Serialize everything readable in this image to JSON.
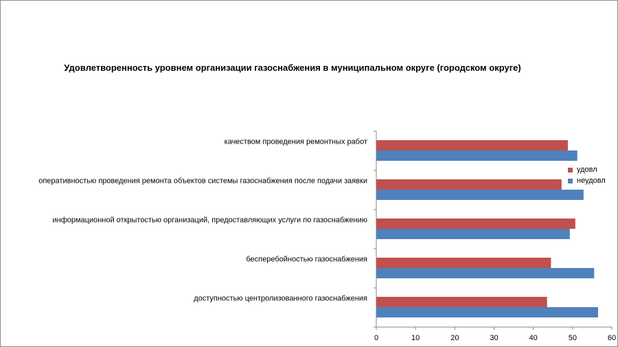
{
  "chart_data": {
    "type": "bar",
    "orientation": "horizontal",
    "title": "Удовлетворенность уровнем организации газоснабжения в муниципальном округе (городском округе)",
    "categories": [
      "доступностью центролизованного газоснабжения",
      "бесперебойностью газоснабжения",
      "информационной открытостью организаций, предоставляющих услуги по газоснабжению",
      "оперативностью проведения ремонта объектов системы газоснабжения после подачи заявки",
      "качеством проведения ремонтных работ"
    ],
    "series": [
      {
        "name": "удовл",
        "color": "#c0504d",
        "values": [
          43.5,
          44.5,
          50.7,
          47.2,
          48.8
        ]
      },
      {
        "name": "неудовл",
        "color": "#4f81bd",
        "values": [
          56.5,
          55.5,
          49.3,
          52.8,
          51.2
        ]
      }
    ],
    "xlim": [
      0,
      60
    ],
    "xticks": [
      0,
      10,
      20,
      30,
      40,
      50,
      60
    ],
    "grid": false,
    "legend_position": "right"
  }
}
